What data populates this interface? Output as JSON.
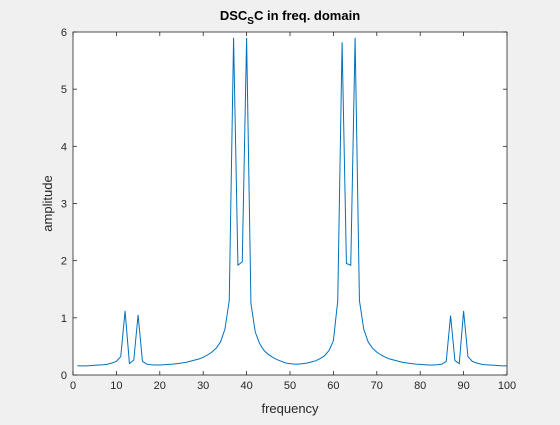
{
  "chart_data": {
    "type": "line",
    "title_main": "DSC",
    "title_sub": "S",
    "title_rest": "C in freq. domain",
    "xlabel": "frequency",
    "ylabel": "amplitude",
    "xlim": [
      0,
      100
    ],
    "ylim": [
      0,
      6
    ],
    "xticks": [
      0,
      10,
      20,
      30,
      40,
      50,
      60,
      70,
      80,
      90,
      100
    ],
    "yticks": [
      0,
      1,
      2,
      3,
      4,
      5,
      6
    ],
    "grid": false,
    "line_color": "#0072bd",
    "series": [
      {
        "x": [
          1,
          2,
          3,
          4,
          5,
          6,
          7,
          8,
          9,
          10,
          11,
          12,
          13,
          14,
          15,
          16,
          17,
          18,
          19,
          20,
          21,
          22,
          23,
          24,
          25,
          26,
          27,
          28,
          29,
          30,
          31,
          32,
          33,
          34,
          35,
          36,
          37,
          38,
          39,
          40,
          41,
          42,
          43,
          44,
          45,
          46,
          47,
          48,
          49,
          50,
          51,
          52,
          53,
          54,
          55,
          56,
          57,
          58,
          59,
          60,
          61,
          62,
          63,
          64,
          65,
          66,
          67,
          68,
          69,
          70,
          71,
          72,
          73,
          74,
          75,
          76,
          77,
          78,
          79,
          80,
          81,
          82,
          83,
          84,
          85,
          86,
          87,
          88,
          89,
          90,
          91,
          92,
          93,
          94,
          95,
          96,
          97,
          98,
          99,
          100
        ],
        "values": [
          0.16,
          0.16,
          0.16,
          0.165,
          0.17,
          0.175,
          0.18,
          0.19,
          0.21,
          0.24,
          0.32,
          1.12,
          0.2,
          0.26,
          1.05,
          0.24,
          0.19,
          0.18,
          0.175,
          0.175,
          0.18,
          0.185,
          0.19,
          0.2,
          0.21,
          0.22,
          0.24,
          0.26,
          0.28,
          0.31,
          0.35,
          0.4,
          0.47,
          0.58,
          0.8,
          1.3,
          5.9,
          1.92,
          1.98,
          5.9,
          1.25,
          0.75,
          0.55,
          0.43,
          0.36,
          0.31,
          0.27,
          0.24,
          0.21,
          0.2,
          0.19,
          0.19,
          0.2,
          0.21,
          0.23,
          0.25,
          0.29,
          0.34,
          0.43,
          0.6,
          1.3,
          5.82,
          1.95,
          1.92,
          5.9,
          1.3,
          0.8,
          0.58,
          0.47,
          0.4,
          0.35,
          0.31,
          0.28,
          0.26,
          0.24,
          0.22,
          0.21,
          0.2,
          0.19,
          0.185,
          0.18,
          0.175,
          0.175,
          0.18,
          0.19,
          0.24,
          1.04,
          0.25,
          0.2,
          1.12,
          0.32,
          0.24,
          0.21,
          0.19,
          0.18,
          0.175,
          0.17,
          0.165,
          0.16,
          0.16
        ]
      }
    ]
  }
}
